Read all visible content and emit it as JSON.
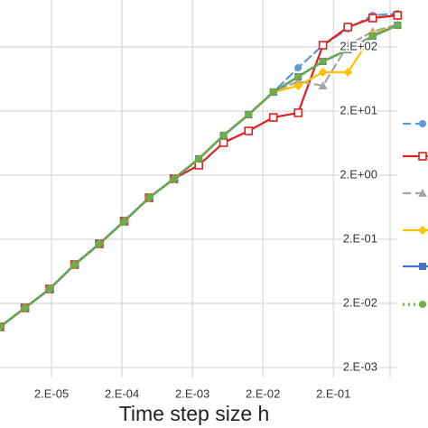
{
  "chart_data": {
    "type": "line",
    "x_label": "Time step size h",
    "x_log": true,
    "y_log": true,
    "grid": true,
    "xlim": [
      3.5e-06,
      3
    ],
    "ylim": [
      0.0014,
      1080
    ],
    "xticks": [
      {
        "value": 2e-05,
        "label": "2.E-05"
      },
      {
        "value": 0.0002,
        "label": "2.E-04"
      },
      {
        "value": 0.002,
        "label": "2.E-03"
      },
      {
        "value": 0.02,
        "label": "2.E-02"
      },
      {
        "value": 0.2,
        "label": "2.E-01"
      }
    ],
    "yticks": [
      {
        "value": 0.002,
        "label": "2.E-03"
      },
      {
        "value": 0.02,
        "label": "2.E-02"
      },
      {
        "value": 0.2,
        "label": "2.E-01"
      },
      {
        "value": 2,
        "label": "2.E+00"
      },
      {
        "value": 20,
        "label": "2.E+01"
      },
      {
        "value": 200,
        "label": "2.E+02"
      }
    ],
    "x": [
      3.72e-06,
      8.38e-06,
      1.88e-05,
      4.25e-05,
      9.55e-05,
      0.000215,
      0.000485,
      0.00109,
      0.00246,
      0.00553,
      0.0125,
      0.0281,
      0.0632,
      0.142,
      0.321,
      0.723,
      1.63
    ],
    "series": [
      {
        "color": "#5b9bd5",
        "line_style": "dash",
        "marker": "circle",
        "values": [
          0.00861,
          0.017,
          0.0336,
          0.0807,
          0.17,
          0.383,
          0.889,
          1.76,
          3.59,
          8.34,
          17.6,
          39.5,
          94.8,
          213,
          383,
          622,
          664
        ]
      },
      {
        "color": "#e0201c",
        "line_style": "solid",
        "marker": "open-square",
        "values": [
          0.00861,
          0.017,
          0.0336,
          0.0807,
          0.17,
          0.383,
          0.889,
          1.76,
          2.86,
          6.43,
          9.8,
          15.9,
          18.8,
          213,
          408,
          565,
          622
        ]
      },
      {
        "color": "#a5a5a5",
        "line_style": "dash",
        "marker": "triangle",
        "values": [
          0.00861,
          0.017,
          0.0336,
          0.0807,
          0.17,
          0.383,
          0.889,
          1.76,
          3.59,
          8.34,
          17.6,
          39.5,
          58.3,
          49.6,
          213,
          347,
          450
        ]
      },
      {
        "color": "#ffc000",
        "line_style": "solid",
        "marker": "diamond",
        "values": [
          0.00861,
          0.017,
          0.0336,
          0.0807,
          0.17,
          0.383,
          0.889,
          1.76,
          3.59,
          8.34,
          17.6,
          39.5,
          49.6,
          80.7,
          80.7,
          315,
          436
        ]
      },
      {
        "color": "#4472c4",
        "line_style": "solid",
        "marker": "square",
        "values": [
          0.00861,
          0.017,
          0.0336,
          0.0807,
          0.17,
          0.383,
          0.889,
          1.76,
          3.59,
          8.34,
          17.6,
          39.5,
          68.6,
          119,
          181,
          295,
          436
        ]
      },
      {
        "color": "#70ad47",
        "line_style": "dot",
        "marker": "circle",
        "values": [
          0.00861,
          0.017,
          0.0336,
          0.0807,
          0.17,
          0.383,
          0.889,
          1.76,
          3.59,
          8.34,
          17.6,
          39.5,
          68.6,
          119,
          181,
          295,
          436
        ]
      }
    ]
  }
}
